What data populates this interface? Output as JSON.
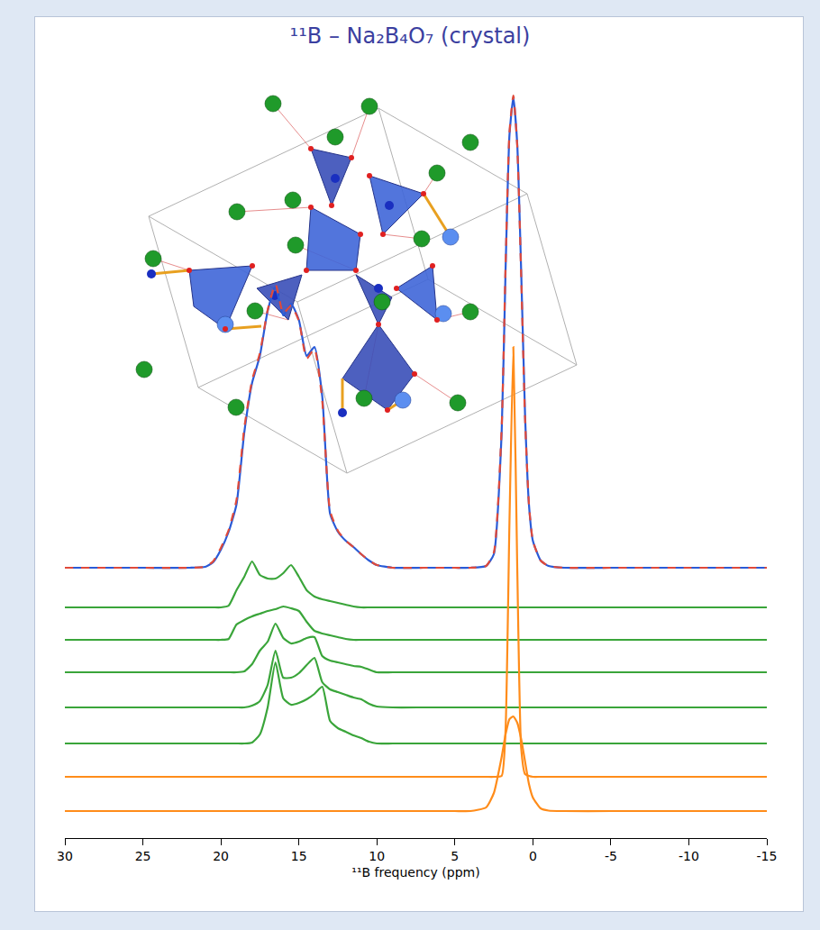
{
  "chart_data": {
    "type": "line",
    "title": "¹¹B – Na₂B₄O₇ (crystal)",
    "x_label": "¹¹B frequency (ppm)",
    "x": [
      30,
      25,
      22,
      21,
      20.5,
      20,
      19.5,
      19,
      18.5,
      18,
      17.5,
      17,
      16.5,
      16,
      15.5,
      15,
      14.5,
      14,
      13.5,
      13,
      12.5,
      12,
      11.5,
      11,
      10.5,
      10,
      9,
      7,
      5,
      4,
      3,
      2.5,
      2,
      1.75,
      1.5,
      1.25,
      1,
      0.75,
      0.5,
      0.25,
      0,
      -0.5,
      -1,
      -2,
      -5,
      -10,
      -15
    ],
    "series": [
      {
        "color": "#2a5bd7",
        "line_style": "solid",
        "values": [
          30,
          30,
          30,
          30.1,
          30.6,
          32,
          34,
          37,
          45,
          50.5,
          53.5,
          58.5,
          61.2,
          58.0,
          59.3,
          57.5,
          53.5,
          54.5,
          49,
          36,
          34,
          33,
          32.3,
          31.5,
          30.8,
          30.3,
          30,
          30,
          30,
          30,
          30.2,
          31.5,
          45,
          63,
          78,
          82.2,
          77,
          63,
          47,
          37,
          33,
          30.8,
          30.2,
          30,
          30,
          30,
          30
        ]
      },
      {
        "color": "#e04a3a",
        "line_style": "dash",
        "values": [
          30,
          30,
          30,
          30.1,
          30.7,
          32.2,
          34.2,
          37.5,
          45.5,
          50.8,
          53.8,
          58.6,
          61.5,
          58.2,
          59.1,
          57.4,
          53.2,
          54.3,
          48.5,
          36.3,
          34.1,
          33,
          32.3,
          31.5,
          30.8,
          30.3,
          30,
          30,
          30,
          30,
          30.2,
          31.7,
          45.5,
          63.5,
          78.3,
          82.4,
          76.8,
          62.5,
          46.5,
          37,
          33,
          30.8,
          30.2,
          30,
          30,
          30,
          30
        ]
      },
      {
        "color": "#3aa53a",
        "line_style": "solid",
        "values": [
          25.6,
          25.6,
          25.6,
          25.6,
          25.6,
          25.6,
          25.8,
          27.5,
          29,
          30.7,
          29.2,
          28.8,
          28.8,
          29.4,
          30.3,
          29,
          27.5,
          26.8,
          26.5,
          26.3,
          26.1,
          25.9,
          25.7,
          25.6,
          25.6,
          25.6,
          25.6,
          25.6,
          25.6,
          25.6,
          25.6,
          25.6,
          25.6,
          25.6,
          25.6,
          25.6,
          25.6,
          25.6,
          25.6,
          25.6,
          25.6,
          25.6,
          25.6,
          25.6,
          25.6,
          25.6,
          25.6
        ]
      },
      {
        "color": "#3aa53a",
        "line_style": "solid",
        "values": [
          22.0,
          22.0,
          22.0,
          22.0,
          22.0,
          22.0,
          22.1,
          23.7,
          24.2,
          24.6,
          24.9,
          25.2,
          25.4,
          25.7,
          25.5,
          25.2,
          24,
          23,
          22.7,
          22.5,
          22.3,
          22.1,
          22.0,
          22.0,
          22.0,
          22.0,
          22.0,
          22.0,
          22.0,
          22.0,
          22.0,
          22.0,
          22.0,
          22.0,
          22.0,
          22.0,
          22.0,
          22.0,
          22.0,
          22.0,
          22.0,
          22.0,
          22.0,
          22.0,
          22.0,
          22.0,
          22.0
        ]
      },
      {
        "color": "#3aa53a",
        "line_style": "solid",
        "values": [
          18.4,
          18.4,
          18.4,
          18.4,
          18.4,
          18.4,
          18.4,
          18.4,
          18.5,
          19.3,
          20.8,
          21.8,
          23.8,
          22.2,
          21.6,
          21.8,
          22.2,
          22.3,
          20.2,
          19.7,
          19.5,
          19.3,
          19.1,
          19,
          18.7,
          18.4,
          18.4,
          18.4,
          18.4,
          18.4,
          18.4,
          18.4,
          18.4,
          18.4,
          18.4,
          18.4,
          18.4,
          18.4,
          18.4,
          18.4,
          18.4,
          18.4,
          18.4,
          18.4,
          18.4,
          18.4,
          18.4
        ]
      },
      {
        "color": "#3aa53a",
        "line_style": "solid",
        "values": [
          14.5,
          14.5,
          14.5,
          14.5,
          14.5,
          14.5,
          14.5,
          14.5,
          14.5,
          14.7,
          15.2,
          17,
          20.8,
          17.8,
          17.8,
          18.3,
          19.2,
          20,
          17.3,
          16.5,
          16.2,
          15.9,
          15.6,
          15.4,
          14.9,
          14.6,
          14.5,
          14.5,
          14.5,
          14.5,
          14.5,
          14.5,
          14.5,
          14.5,
          14.5,
          14.5,
          14.5,
          14.5,
          14.5,
          14.5,
          14.5,
          14.5,
          14.5,
          14.5,
          14.5,
          14.5,
          14.5
        ]
      },
      {
        "color": "#3aa53a",
        "line_style": "solid",
        "values": [
          10.5,
          10.5,
          10.5,
          10.5,
          10.5,
          10.5,
          10.5,
          10.5,
          10.5,
          10.6,
          11.5,
          14.5,
          19.5,
          15.5,
          14.8,
          15,
          15.4,
          16,
          16.8,
          13,
          12.2,
          11.8,
          11.4,
          11.1,
          10.7,
          10.5,
          10.5,
          10.5,
          10.5,
          10.5,
          10.5,
          10.5,
          10.5,
          10.5,
          10.5,
          10.5,
          10.5,
          10.5,
          10.5,
          10.5,
          10.5,
          10.5,
          10.5,
          10.5,
          10.5,
          10.5,
          10.5
        ]
      },
      {
        "color": "#ff8c1a",
        "line_style": "solid",
        "values": [
          6.8,
          6.8,
          6.8,
          6.8,
          6.8,
          6.8,
          6.8,
          6.8,
          6.8,
          6.8,
          6.8,
          6.8,
          6.8,
          6.8,
          6.8,
          6.8,
          6.8,
          6.8,
          6.8,
          6.8,
          6.8,
          6.8,
          6.8,
          6.8,
          6.8,
          6.8,
          6.8,
          6.8,
          6.8,
          6.8,
          6.8,
          6.8,
          6.9,
          12,
          35,
          54.5,
          30,
          10,
          7.1,
          6.9,
          6.8,
          6.8,
          6.8,
          6.8,
          6.8,
          6.8,
          6.8
        ]
      },
      {
        "color": "#ff8c1a",
        "line_style": "solid",
        "values": [
          3.0,
          3.0,
          3.0,
          3.0,
          3.0,
          3.0,
          3.0,
          3.0,
          3.0,
          3.0,
          3.0,
          3.0,
          3.0,
          3.0,
          3.0,
          3.0,
          3.0,
          3.0,
          3.0,
          3.0,
          3.0,
          3.0,
          3.0,
          3.0,
          3.0,
          3.0,
          3.0,
          3.0,
          3.0,
          3.0,
          3.4,
          5,
          9,
          11.5,
          13.2,
          13.5,
          12.8,
          11,
          8.5,
          6,
          4.5,
          3.3,
          3.05,
          3.0,
          3.0,
          3.0,
          3.0
        ]
      }
    ],
    "xlim": [
      30,
      -15
    ],
    "xticks": [
      30,
      25,
      20,
      15,
      10,
      5,
      0,
      -5,
      -10,
      -15
    ],
    "ylim": [
      0,
      84
    ],
    "tick_labels": "x",
    "grid": false
  }
}
